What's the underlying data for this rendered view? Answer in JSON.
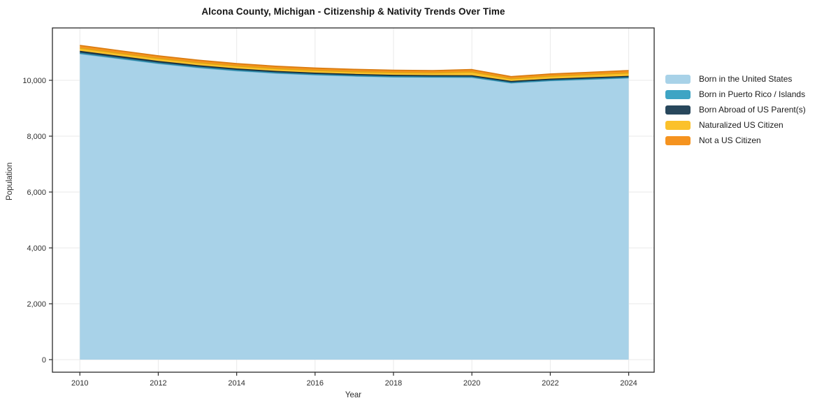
{
  "title": "Alcona County, Michigan - Citizenship & Nativity Trends Over Time",
  "chart_data": {
    "type": "area",
    "stacked": true,
    "title": "Alcona County, Michigan - Citizenship & Nativity Trends Over Time",
    "xlabel": "Year",
    "ylabel": "Population",
    "x": [
      2010,
      2011,
      2012,
      2013,
      2014,
      2015,
      2016,
      2017,
      2018,
      2019,
      2020,
      2021,
      2022,
      2023,
      2024
    ],
    "xticks": [
      2010,
      2012,
      2014,
      2016,
      2018,
      2020,
      2022,
      2024
    ],
    "yticks": [
      0,
      2000,
      4000,
      6000,
      8000,
      10000
    ],
    "xlim": [
      2009.3,
      2024.65
    ],
    "ylim": [
      -450,
      11875
    ],
    "grid": true,
    "legend_position": "right",
    "background": "#ffffff",
    "grid_color": "#e9e9e9",
    "frame_color": "#2a2a2a",
    "series": [
      {
        "name": "Born in the United States",
        "fill": "#a8d2e8",
        "line": "#79b6d4",
        "values": [
          10950,
          10775,
          10600,
          10455,
          10340,
          10255,
          10195,
          10150,
          10120,
          10110,
          10105,
          9905,
          9985,
          10035,
          10085
        ]
      },
      {
        "name": "Born in Puerto Rico / Islands",
        "fill": "#3ea4c4",
        "line": "#2b89a8",
        "values": [
          20,
          18,
          16,
          15,
          14,
          13,
          12,
          12,
          11,
          11,
          10,
          10,
          10,
          10,
          10
        ]
      },
      {
        "name": "Born Abroad of US Parent(s)",
        "fill": "#28475c",
        "line": "#16303f",
        "values": [
          65,
          62,
          58,
          55,
          52,
          50,
          48,
          47,
          46,
          45,
          45,
          42,
          44,
          45,
          46
        ]
      },
      {
        "name": "Naturalized US Citizen",
        "fill": "#fbc12b",
        "line": "#dfa513",
        "values": [
          115,
          110,
          108,
          105,
          102,
          100,
          98,
          97,
          96,
          96,
          135,
          98,
          105,
          110,
          118
        ]
      },
      {
        "name": "Not a US Citizen",
        "fill": "#f5931f",
        "line": "#d87a0e",
        "values": [
          100,
          97,
          95,
          92,
          90,
          88,
          87,
          86,
          86,
          85,
          90,
          78,
          83,
          88,
          92
        ]
      }
    ]
  }
}
